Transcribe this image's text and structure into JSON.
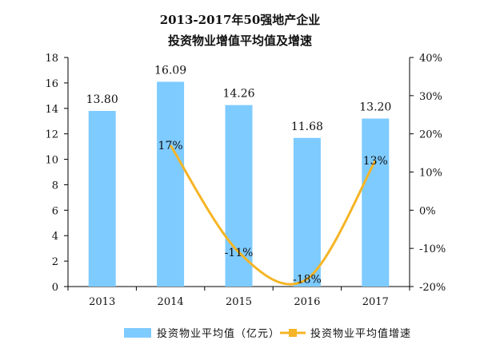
{
  "chart_data": {
    "type": "bar",
    "title_line_1": "2013-2017年50强地产企业",
    "title_line_2": "投资物业增值平均值及增速",
    "categories": [
      "2013",
      "2014",
      "2015",
      "2016",
      "2017"
    ],
    "left_axis": {
      "min": 0,
      "max": 18,
      "step": 2
    },
    "right_axis": {
      "min": -20,
      "max": 40,
      "step": 10,
      "unit": "%"
    },
    "series": [
      {
        "name": "投资物业平均值（亿元）",
        "kind": "bar",
        "axis": "left",
        "color": "#7ecbff",
        "values": [
          13.8,
          16.09,
          14.26,
          11.68,
          13.2
        ],
        "labels": [
          "13.80",
          "16.09",
          "14.26",
          "11.68",
          "13.20"
        ]
      },
      {
        "name": "投资物业平均值增速",
        "kind": "line",
        "axis": "right",
        "color": "#f5b526",
        "values": [
          null,
          17,
          -11,
          -18,
          13
        ],
        "labels": [
          "",
          "17%",
          "-11%",
          "-18%",
          "13%"
        ]
      }
    ],
    "legend_position": "bottom",
    "grid": false
  }
}
